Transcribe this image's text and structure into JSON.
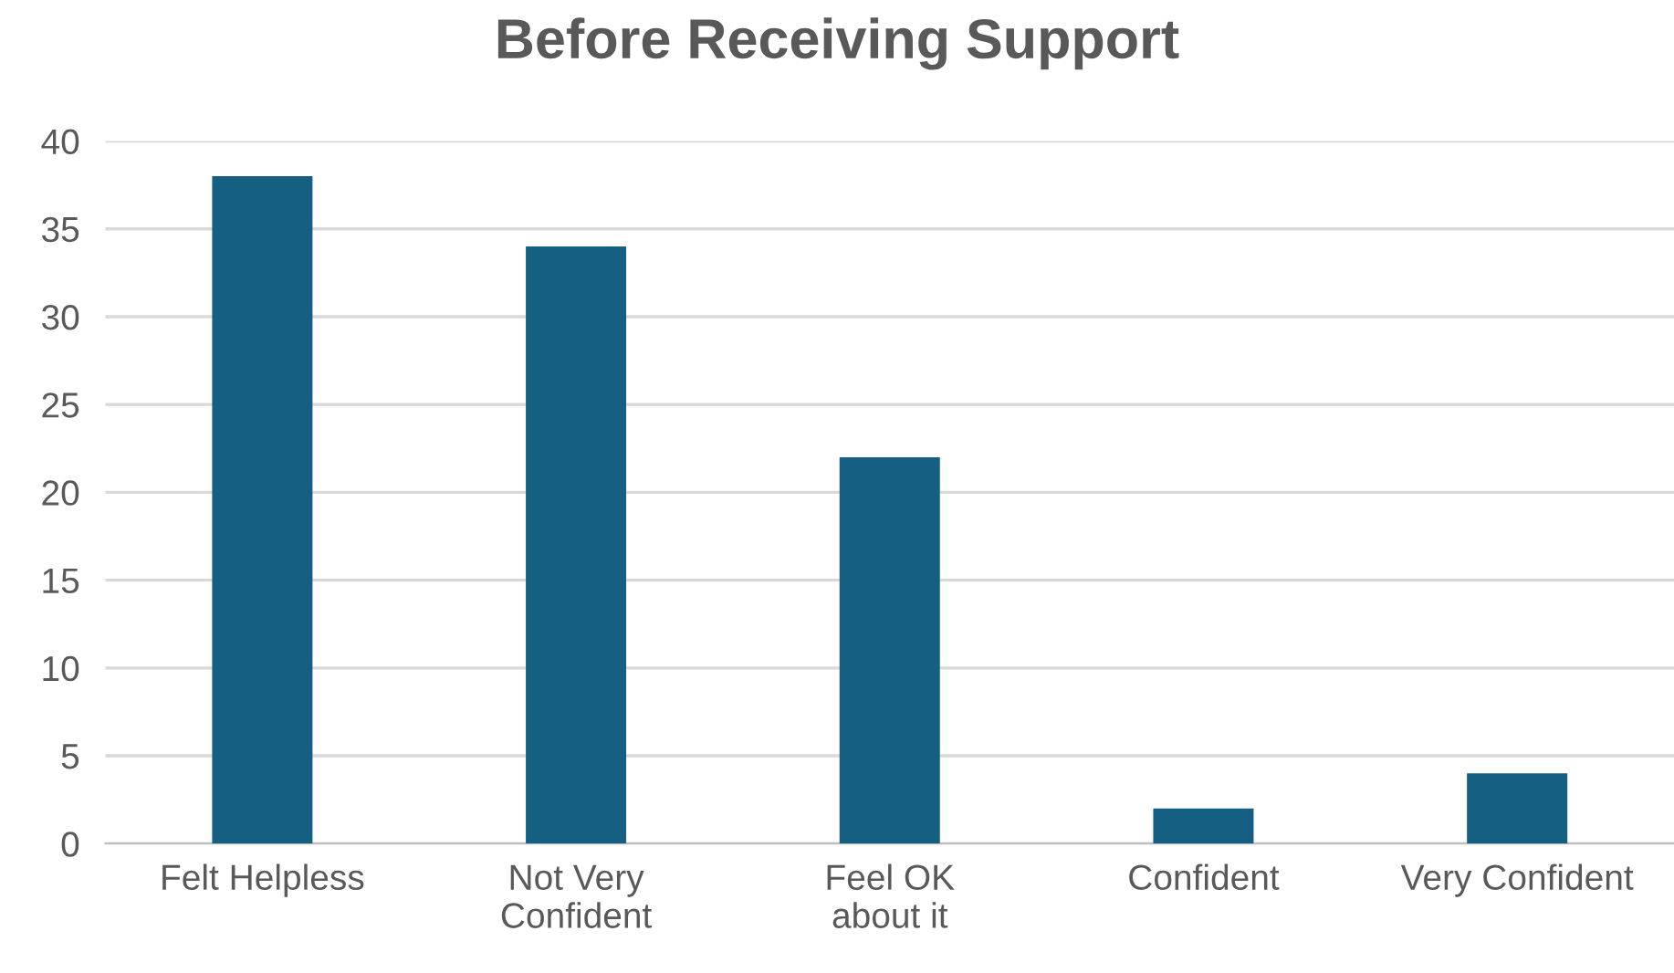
{
  "chart_data": {
    "type": "bar",
    "title": "Before Receiving Support",
    "categories": [
      "Felt Helpless",
      "Not Very Confident",
      "Feel OK about it",
      "Confident",
      "Very Confident"
    ],
    "values": [
      38,
      34,
      22,
      2,
      4
    ],
    "color": "#156082",
    "ylim": [
      0,
      40
    ],
    "yticks": [
      0,
      5,
      10,
      15,
      20,
      25,
      30,
      35,
      40
    ],
    "grid": "y",
    "legend": false
  }
}
